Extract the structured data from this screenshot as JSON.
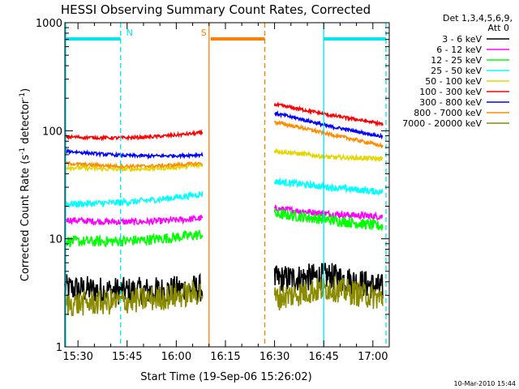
{
  "chart_data": {
    "type": "line",
    "title": "HESSI Observing Summary Count Rates, Corrected",
    "xlabel": "Start Time (19-Sep-06 15:26:02)",
    "ylabel_main": "Corrected Count Rate (s",
    "ylabel_sup1": "-1",
    "ylabel_mid": " detector",
    "ylabel_sup2": "-1",
    "ylabel_end": ")",
    "yscale": "log",
    "ylim": [
      1,
      1000
    ],
    "xlim_minutes": [
      "15:26",
      "17:05"
    ],
    "x_ticks": [
      "15:30",
      "15:45",
      "16:00",
      "16:15",
      "16:30",
      "16:45",
      "17:00"
    ],
    "y_ticks": [
      "1",
      "10",
      "100",
      "1000"
    ],
    "legend_header": [
      "Det 1,3,4,5,6,9,",
      "Att 0"
    ],
    "legend_position": "top-right",
    "timestamp": "10-Mar-2010 15:44",
    "segments": [
      [
        "15:26",
        "16:08"
      ],
      [
        "16:30",
        "17:03"
      ]
    ],
    "markers": [
      {
        "label": "N",
        "color": "#00e5ee",
        "bar": [
          "15:26",
          "15:43"
        ],
        "lines": [
          "15:26",
          "15:43"
        ]
      },
      {
        "label": "S",
        "color": "#ff7f00",
        "bar": [
          "16:10",
          "16:27"
        ],
        "lines": [
          "16:10",
          "16:27"
        ]
      },
      {
        "label": "",
        "color": "#00e5ee",
        "bar": [
          "16:45",
          "17:04"
        ],
        "lines": [
          "16:45",
          "17:04"
        ]
      }
    ],
    "series": [
      {
        "name": "3 - 6 keV",
        "color": "#000000",
        "a": [
          3.5,
          3.5
        ],
        "b": [
          4.2,
          4.5,
          3.5
        ],
        "noise": 0.13
      },
      {
        "name": "6 - 12 keV",
        "color": "#ff00ff",
        "a": [
          15,
          15.5
        ],
        "b": [
          19,
          17,
          16
        ],
        "noise": 0.03
      },
      {
        "name": "12 - 25 keV",
        "color": "#00ff00",
        "a": [
          9.5,
          11
        ],
        "b": [
          17,
          15,
          13
        ],
        "noise": 0.05
      },
      {
        "name": "25 - 50 keV",
        "color": "#00ffff",
        "a": [
          21,
          26
        ],
        "b": [
          34,
          30,
          27
        ],
        "noise": 0.03
      },
      {
        "name": "50 - 100 keV",
        "color": "#e5d600",
        "a": [
          46,
          48
        ],
        "b": [
          65,
          57,
          55
        ],
        "noise": 0.02
      },
      {
        "name": "100 - 300 keV",
        "color": "#ff0000",
        "a": [
          88,
          96
        ],
        "b": [
          175,
          140,
          115
        ],
        "noise": 0.015
      },
      {
        "name": "300 - 800 keV",
        "color": "#0000ff",
        "a": [
          65,
          60
        ],
        "b": [
          145,
          110,
          88
        ],
        "noise": 0.015
      },
      {
        "name": "800 - 7000 keV",
        "color": "#ff8c00",
        "a": [
          50,
          50
        ],
        "b": [
          120,
          93,
          72
        ],
        "noise": 0.015
      },
      {
        "name": "7000 - 20000 keV",
        "color": "#8b8b00",
        "a": [
          2.5,
          3.2
        ],
        "b": [
          2.8,
          3.5,
          2.8
        ],
        "noise": 0.12
      }
    ]
  }
}
